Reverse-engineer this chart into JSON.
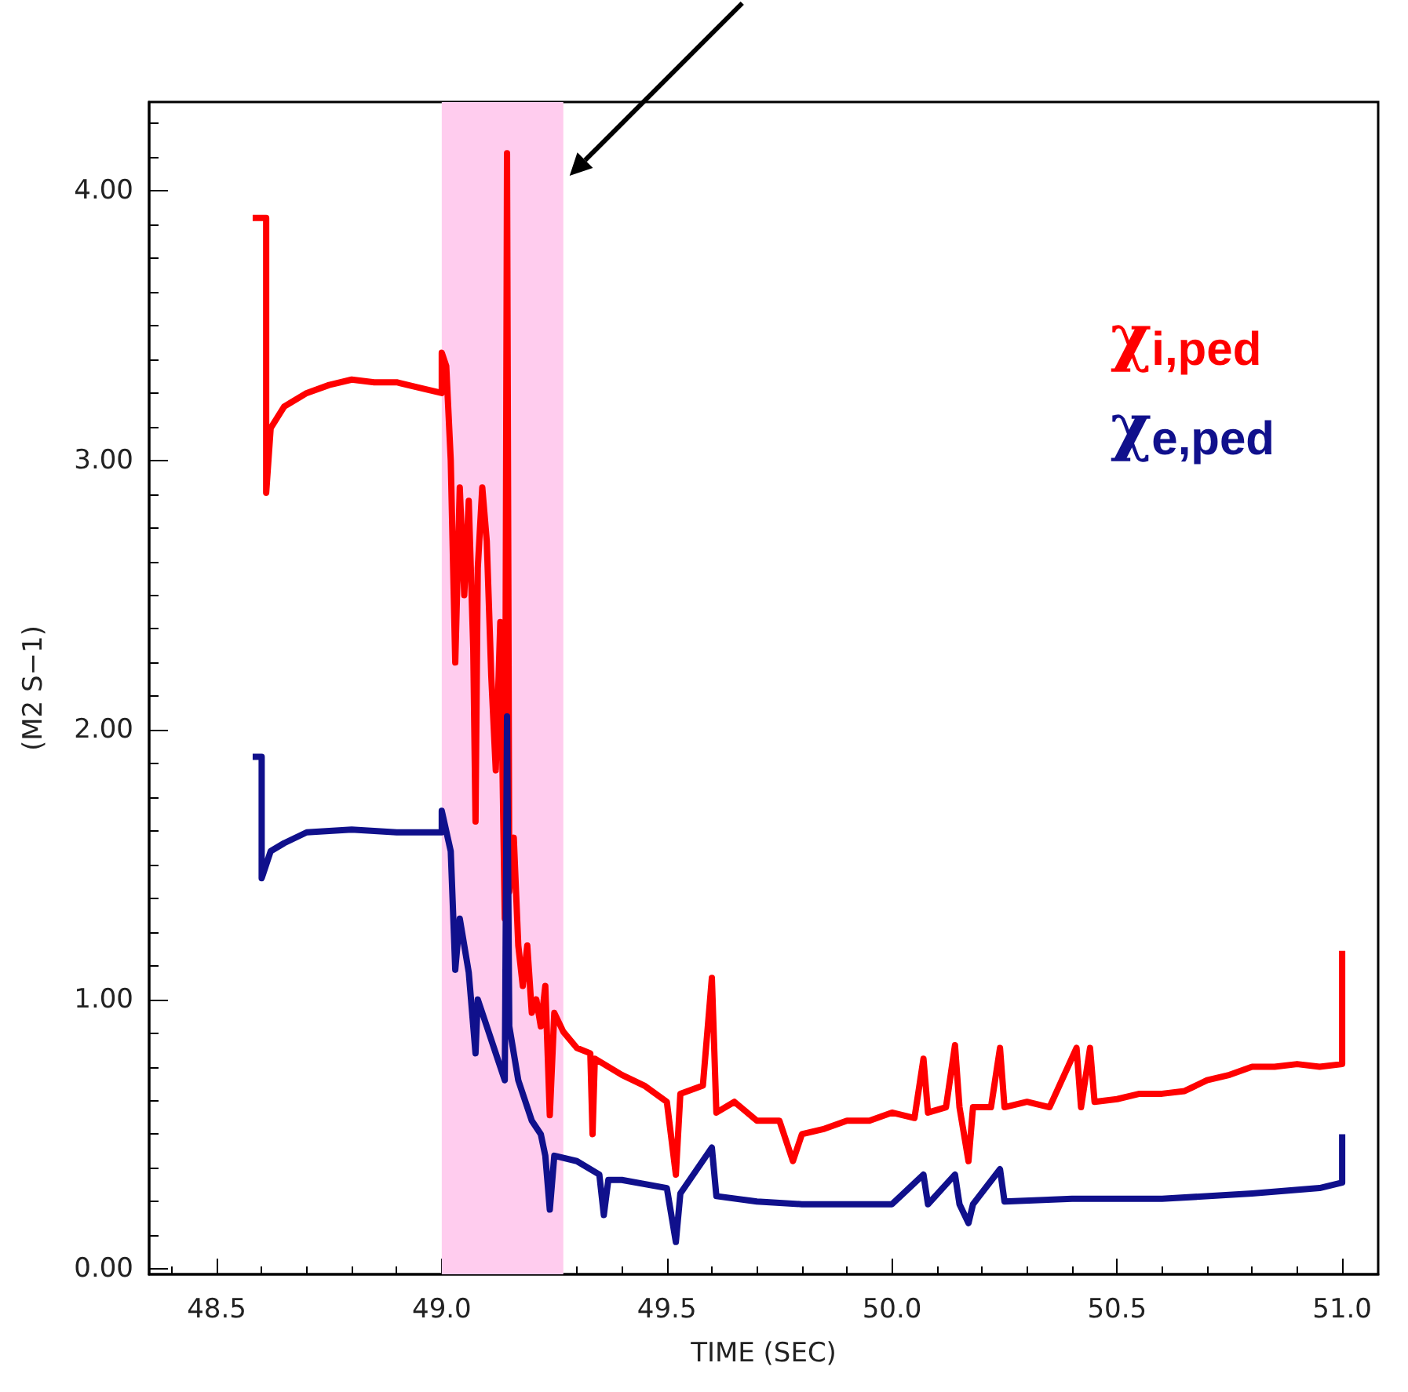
{
  "chart_data": {
    "type": "line",
    "xlabel": "TIME (SEC)",
    "ylabel": "(M2 S−1)",
    "xlim": [
      48.35,
      51.08
    ],
    "ylim": [
      -0.02,
      4.33
    ],
    "xticks": [
      48.5,
      {
        "value": 49,
        "label": "49.0"
      },
      49.5,
      {
        "value": 50,
        "label": "50.0"
      },
      50.5,
      {
        "value": 51,
        "label": "51.0"
      }
    ],
    "yticks": [
      {
        "value": 0,
        "label": "0.00"
      },
      {
        "value": 1,
        "label": "1.00"
      },
      {
        "value": 2,
        "label": "2.00"
      },
      {
        "value": 3,
        "label": "3.00"
      },
      {
        "value": 4,
        "label": "4.00"
      }
    ],
    "grid": false,
    "legend": "right",
    "marker": "none",
    "line_style": "solid",
    "bands": [
      {
        "axis": "x",
        "from": 49.0,
        "to": 49.27,
        "color": "#ffccee"
      }
    ],
    "series": [
      {
        "name": "χ$_{i,ped}$",
        "color": "#ff0000",
        "x": [
          48.58,
          48.61,
          48.61,
          48.62,
          48.65,
          48.7,
          48.75,
          48.8,
          48.85,
          48.9,
          48.95,
          49.0,
          49.0,
          49.01,
          49.02,
          49.03,
          49.04,
          49.05,
          49.06,
          49.07,
          49.075,
          49.08,
          49.09,
          49.1,
          49.11,
          49.12,
          49.13,
          49.14,
          49.145,
          49.15,
          49.16,
          49.17,
          49.18,
          49.19,
          49.2,
          49.21,
          49.22,
          49.23,
          49.24,
          49.25,
          49.27,
          49.3,
          49.33,
          49.335,
          49.34,
          49.4,
          49.45,
          49.5,
          49.52,
          49.53,
          49.58,
          49.6,
          49.61,
          49.65,
          49.7,
          49.75,
          49.78,
          49.8,
          49.85,
          49.9,
          49.95,
          50.0,
          50.05,
          50.07,
          50.08,
          50.12,
          50.14,
          50.15,
          50.17,
          50.18,
          50.22,
          50.24,
          50.25,
          50.3,
          50.35,
          50.41,
          50.42,
          50.44,
          50.45,
          50.5,
          50.55,
          50.6,
          50.65,
          50.7,
          50.75,
          50.8,
          50.85,
          50.9,
          50.95,
          51.0,
          51.0
        ],
        "values": [
          3.9,
          3.9,
          2.88,
          3.12,
          3.2,
          3.25,
          3.28,
          3.3,
          3.29,
          3.29,
          3.27,
          3.25,
          3.4,
          3.35,
          3.0,
          2.25,
          2.9,
          2.5,
          2.85,
          2.3,
          1.66,
          2.6,
          2.9,
          2.7,
          2.2,
          1.85,
          2.4,
          1.3,
          4.14,
          1.4,
          1.6,
          1.2,
          1.05,
          1.2,
          0.95,
          1.0,
          0.9,
          1.05,
          0.57,
          0.95,
          0.88,
          0.82,
          0.8,
          0.5,
          0.78,
          0.72,
          0.68,
          0.62,
          0.35,
          0.65,
          0.68,
          1.08,
          0.58,
          0.62,
          0.55,
          0.55,
          0.4,
          0.5,
          0.52,
          0.55,
          0.55,
          0.58,
          0.56,
          0.78,
          0.58,
          0.6,
          0.83,
          0.6,
          0.4,
          0.6,
          0.6,
          0.82,
          0.6,
          0.62,
          0.6,
          0.82,
          0.6,
          0.82,
          0.62,
          0.63,
          0.65,
          0.65,
          0.66,
          0.7,
          0.72,
          0.75,
          0.75,
          0.76,
          0.75,
          0.76,
          1.18
        ]
      },
      {
        "name": "χ$_{e,ped}$",
        "color": "#10108c",
        "x": [
          48.58,
          48.6,
          48.6,
          48.62,
          48.65,
          48.7,
          48.8,
          48.9,
          49.0,
          49.0,
          49.02,
          49.03,
          49.04,
          49.05,
          49.06,
          49.075,
          49.08,
          49.1,
          49.12,
          49.14,
          49.145,
          49.15,
          49.17,
          49.2,
          49.22,
          49.23,
          49.24,
          49.25,
          49.3,
          49.35,
          49.36,
          49.37,
          49.4,
          49.5,
          49.52,
          49.53,
          49.6,
          49.61,
          49.7,
          49.8,
          49.9,
          50.0,
          50.07,
          50.08,
          50.14,
          50.15,
          50.17,
          50.18,
          50.24,
          50.25,
          50.4,
          50.6,
          50.8,
          50.95,
          51.0,
          51.0
        ],
        "values": [
          1.9,
          1.9,
          1.45,
          1.55,
          1.58,
          1.62,
          1.63,
          1.62,
          1.62,
          1.7,
          1.55,
          1.11,
          1.3,
          1.2,
          1.1,
          0.8,
          1.0,
          0.9,
          0.8,
          0.7,
          2.05,
          0.9,
          0.7,
          0.55,
          0.5,
          0.42,
          0.22,
          0.42,
          0.4,
          0.35,
          0.2,
          0.33,
          0.33,
          0.3,
          0.1,
          0.28,
          0.45,
          0.27,
          0.25,
          0.24,
          0.24,
          0.24,
          0.35,
          0.24,
          0.35,
          0.24,
          0.17,
          0.24,
          0.37,
          0.25,
          0.26,
          0.26,
          0.28,
          0.3,
          0.32,
          0.5
        ]
      }
    ]
  }
}
